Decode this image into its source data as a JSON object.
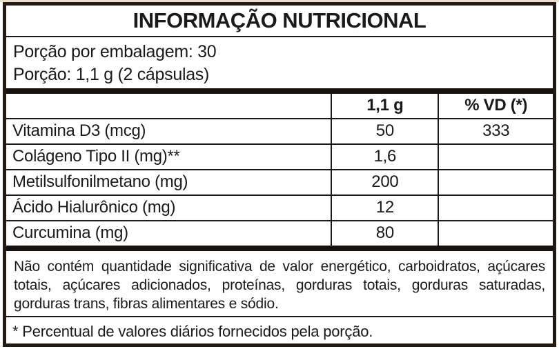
{
  "label": {
    "title": "INFORMAÇÃO NUTRICIONAL",
    "servings_per_package": "Porção por embalagem: 30",
    "serving_size": "Porção: 1,1 g (2 cápsulas)",
    "table": {
      "headers": [
        "",
        "1,1 g",
        "% VD (*)"
      ],
      "rows": [
        {
          "name": "Vitamina D3 (mcg)",
          "amount": "50",
          "vd": "333"
        },
        {
          "name": "Colágeno Tipo II (mg)**",
          "amount": "1,6",
          "vd": ""
        },
        {
          "name": "Metilsulfonilmetano (mg)",
          "amount": "200",
          "vd": ""
        },
        {
          "name": "Ácido Hialurônico (mg)",
          "amount": "12",
          "vd": ""
        },
        {
          "name": "Curcumina (mg)",
          "amount": "80",
          "vd": ""
        }
      ]
    },
    "note": "Não contém quantidade significativa de valor energético, carboidratos, açúcares totais, açúcares adicionados, proteínas, gorduras totais, gorduras saturadas, gorduras trans, fibras alimentares e sódio.",
    "footnote": "* Percentual de valores diários fornecidos pela porção."
  },
  "colors": {
    "text": "#1c1a18",
    "outer_border": "#241a12",
    "thick_divider": "#14110e",
    "background": "#ffffff",
    "page_edge_tint": "#ecdfcd"
  }
}
